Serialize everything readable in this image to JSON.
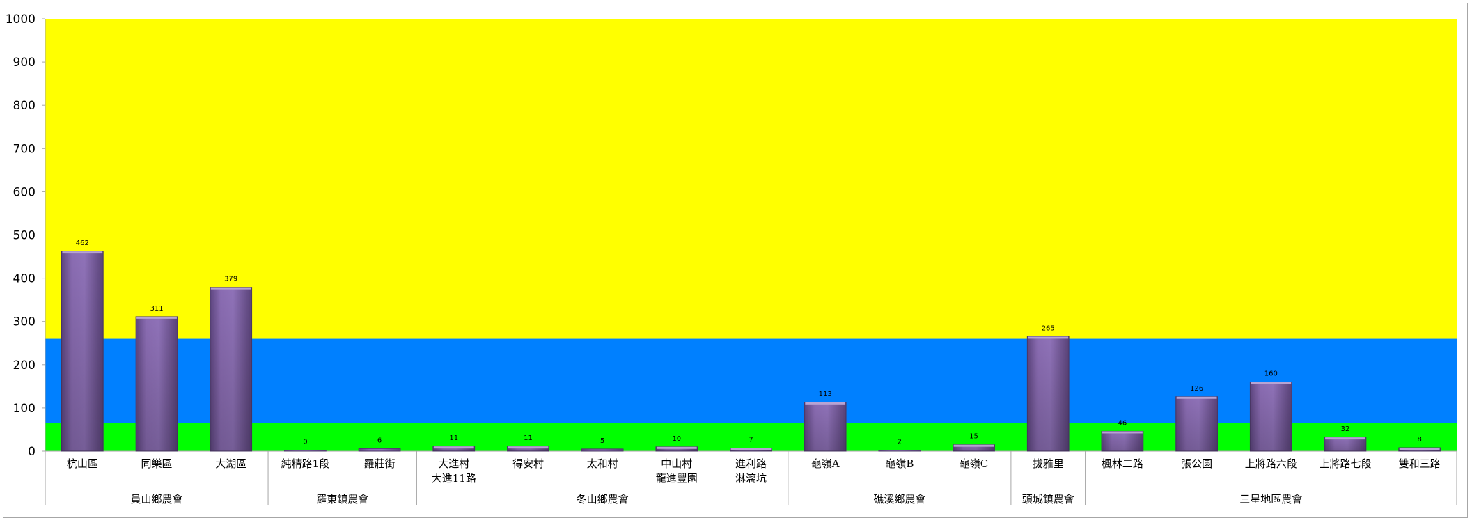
{
  "chart_data": {
    "type": "bar",
    "title": "",
    "xlabel": "",
    "ylabel": "",
    "ylim": [
      0,
      1000
    ],
    "yticks": [
      "0",
      "100",
      "200",
      "300",
      "400",
      "500",
      "600",
      "700",
      "800",
      "900",
      "1000"
    ],
    "grid": false,
    "legend": "none",
    "background_bands": [
      {
        "from": 0,
        "to": 65,
        "color": "#00ff00"
      },
      {
        "from": 65,
        "to": 260,
        "color": "#0080ff"
      },
      {
        "from": 260,
        "to": 1000,
        "color": "#ffff00"
      }
    ],
    "bar_color": "#8064a2",
    "categories": [
      [
        "杭山區"
      ],
      [
        "同樂區"
      ],
      [
        "大湖區"
      ],
      [
        "純精路1段"
      ],
      [
        "羅莊街"
      ],
      [
        "大進村",
        "大進11路"
      ],
      [
        "得安村"
      ],
      [
        "太和村"
      ],
      [
        "中山村",
        "龍進豐園"
      ],
      [
        "進利路",
        "淋漓坑"
      ],
      [
        "龜嶺A"
      ],
      [
        "龜嶺B"
      ],
      [
        "龜嶺C"
      ],
      [
        "拔雅里"
      ],
      [
        "楓林二路"
      ],
      [
        "張公園"
      ],
      [
        "上將路六段"
      ],
      [
        "上將路七段"
      ],
      [
        "雙和三路"
      ]
    ],
    "values": [
      462,
      311,
      379,
      0,
      6,
      11,
      11,
      5,
      10,
      7,
      113,
      2,
      15,
      265,
      46,
      126,
      160,
      32,
      8
    ],
    "groups": [
      {
        "name": "員山鄉農會",
        "count": 3
      },
      {
        "name": "羅東鎮農會",
        "count": 2
      },
      {
        "name": "冬山鄉農會",
        "count": 5
      },
      {
        "name": "礁溪鄉農會",
        "count": 3
      },
      {
        "name": "頭城鎮農會",
        "count": 1
      },
      {
        "name": "三星地區農會",
        "count": 5
      }
    ]
  }
}
